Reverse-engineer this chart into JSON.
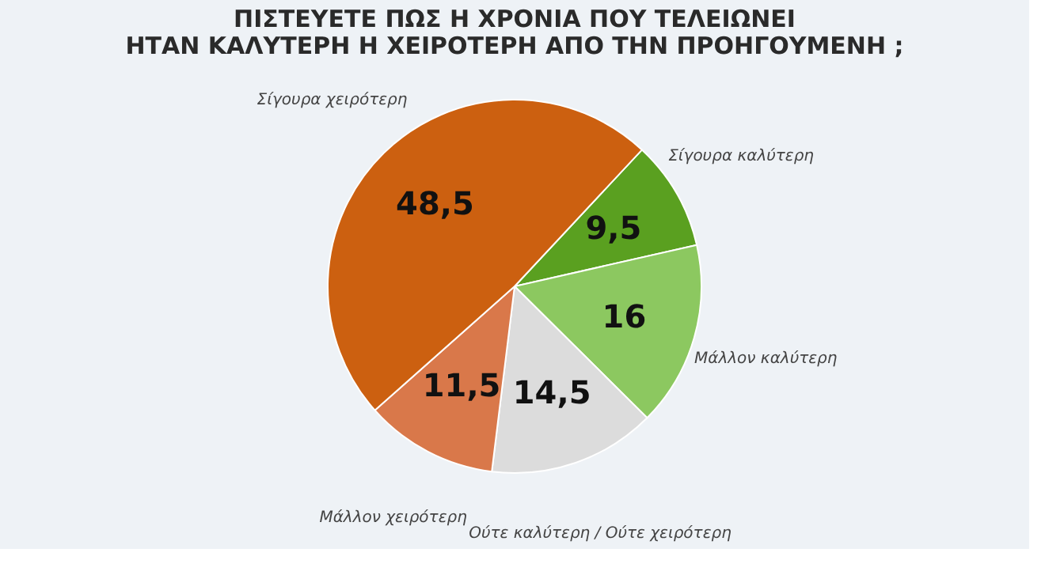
{
  "chart_data": {
    "type": "pie",
    "title": "ΠΙΣΤΕΥΕΤΕ ΠΩΣ Η ΧΡΟΝΙΑ ΠΟΥ ΤΕΛΕΙΩΝΕΙ\nΗΤΑΝ ΚΑΛΥΤΕΡΗ Η ΧΕΙΡΟΤΕΡΗ ΑΠΟ ΤΗΝ ΠΡΟΗΓΟΥΜΕΝΗ ;",
    "categories": [
      "Σίγουρα καλύτερη",
      "Μάλλον καλύτερη",
      "Ούτε καλύτερη / Ούτε χειρότερη",
      "Μάλλον χειρότερη",
      "Σίγουρα χειρότερη"
    ],
    "values": [
      9.5,
      16,
      14.5,
      11.5,
      48.5
    ],
    "value_labels": [
      "9,5",
      "16",
      "14,5",
      "11,5",
      "48,5"
    ],
    "colors": [
      "#5aa020",
      "#8cc860",
      "#dcdcdc",
      "#d9784a",
      "#cc6010"
    ]
  }
}
